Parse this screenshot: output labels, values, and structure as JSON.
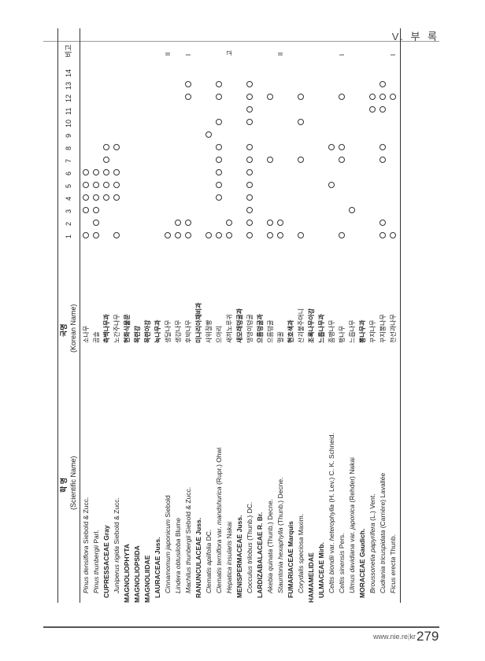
{
  "section_label": "V. 부 록",
  "footer": {
    "url": "www.nie.re.kr",
    "separator": "|",
    "page": "279"
  },
  "header": {
    "sci_title": "학 명",
    "sci_sub": "(Scientific Name)",
    "kor_title": "국명",
    "kor_sub": "(Korean Name)",
    "cols": [
      "1",
      "2",
      "3",
      "4",
      "5",
      "6",
      "7",
      "8",
      "9",
      "10",
      "11",
      "12",
      "13",
      "14"
    ],
    "note_title": "비고"
  },
  "rows": [
    {
      "ind": 2,
      "parts": [
        {
          "t": "Pinus densiflora",
          "i": true
        },
        {
          "t": " Siebold & Zucc."
        }
      ],
      "kor": "소나무",
      "marks": [
        1,
        3,
        4,
        5,
        6
      ],
      "note": ""
    },
    {
      "ind": 2,
      "parts": [
        {
          "t": "Pinus thunbergii",
          "i": true
        },
        {
          "t": " Parl."
        }
      ],
      "kor": "곰솔",
      "marks": [
        1,
        2,
        3,
        4,
        5,
        6
      ],
      "note": ""
    },
    {
      "ind": 1,
      "cap": true,
      "parts": [
        {
          "t": "CUPRESSACEAE Gray"
        }
      ],
      "kor": "측백나무과",
      "kb": true,
      "marks": [
        4,
        5,
        6,
        7,
        8
      ],
      "note": ""
    },
    {
      "ind": 2,
      "parts": [
        {
          "t": "Juniperus rigida",
          "i": true
        },
        {
          "t": " Siebold & Zucc."
        }
      ],
      "kor": "노간주나무",
      "marks": [
        1,
        4,
        5,
        6,
        8
      ],
      "note": ""
    },
    {
      "ind": 0,
      "cap": true,
      "parts": [
        {
          "t": "MAGNOLIOPHYTA"
        }
      ],
      "kor": "현화식물문",
      "kb": true,
      "marks": [],
      "note": ""
    },
    {
      "ind": 0,
      "cap": true,
      "parts": [
        {
          "t": "MAGNOLIOPSIDA"
        }
      ],
      "kor": "목련강",
      "kb": true,
      "marks": [],
      "note": ""
    },
    {
      "ind": 0,
      "cap": true,
      "parts": [
        {
          "t": "MAGNOLIIDAE"
        }
      ],
      "kor": "목련아강",
      "kb": true,
      "marks": [],
      "note": ""
    },
    {
      "ind": 1,
      "cap": true,
      "parts": [
        {
          "t": "LAURACEAE Juss."
        }
      ],
      "kor": "녹나무과",
      "kb": true,
      "marks": [],
      "note": ""
    },
    {
      "ind": 2,
      "parts": [
        {
          "t": "Cinnamomum japonicum",
          "i": true
        },
        {
          "t": " Siebold"
        }
      ],
      "kor": "생달나무",
      "marks": [
        1
      ],
      "note": "II"
    },
    {
      "ind": 2,
      "parts": [
        {
          "t": "Lindera obtusiloba",
          "i": true
        },
        {
          "t": " Blume"
        }
      ],
      "kor": "생강나무",
      "marks": [
        1,
        2
      ],
      "note": ""
    },
    {
      "ind": 2,
      "parts": [
        {
          "t": "Machilus thunbergii",
          "i": true
        },
        {
          "t": " Siebold & Zucc."
        }
      ],
      "kor": "후박나무",
      "marks": [
        1,
        2,
        12,
        13
      ],
      "note": "I"
    },
    {
      "ind": 1,
      "cap": true,
      "parts": [
        {
          "t": "RANUNCULACEAE Juss."
        }
      ],
      "kor": "미나리아재비과",
      "kb": true,
      "marks": [],
      "note": ""
    },
    {
      "ind": 2,
      "parts": [
        {
          "t": "Clematis apiifolia",
          "i": true
        },
        {
          "t": " DC."
        }
      ],
      "kor": "사위질빵",
      "marks": [
        1,
        9
      ],
      "note": ""
    },
    {
      "ind": 2,
      "parts": [
        {
          "t": "Clematis terniflora",
          "i": true
        },
        {
          "t": " var. "
        },
        {
          "t": "mandshurica",
          "i": true
        },
        {
          "t": " (Rupr.) Ohwi"
        }
      ],
      "kor": "으아리",
      "marks": [
        1,
        4,
        5,
        6,
        7,
        8,
        10,
        12,
        13
      ],
      "note": ""
    },
    {
      "ind": 2,
      "parts": [
        {
          "t": "Hepatica insularis",
          "i": true
        },
        {
          "t": " Nakai"
        }
      ],
      "kor": "새끼노루귀",
      "marks": [
        1,
        2
      ],
      "note": "고"
    },
    {
      "ind": 1,
      "cap": true,
      "parts": [
        {
          "t": "MENISPERMACEAE Juss."
        }
      ],
      "kor": "새모래덩굴과",
      "kb": true,
      "marks": [],
      "note": ""
    },
    {
      "ind": 2,
      "parts": [
        {
          "t": "Cocculus trilobus",
          "i": true
        },
        {
          "t": " (Thunb.) DC."
        }
      ],
      "kor": "댕댕이덩굴",
      "marks": [
        1,
        2,
        3,
        4,
        5,
        6,
        7,
        8,
        10,
        11,
        12,
        13
      ],
      "note": ""
    },
    {
      "ind": 1,
      "cap": true,
      "parts": [
        {
          "t": "LARDIZABALACEAE R. Br."
        }
      ],
      "kor": "으름덩굴과",
      "kb": true,
      "marks": [],
      "note": ""
    },
    {
      "ind": 2,
      "parts": [
        {
          "t": "Akebia quinata",
          "i": true
        },
        {
          "t": " (Thunb.) Decne."
        }
      ],
      "kor": "으름덩굴",
      "marks": [
        1,
        2,
        7,
        12
      ],
      "note": ""
    },
    {
      "ind": 2,
      "parts": [
        {
          "t": "Stauntonia hexaphylla",
          "i": true
        },
        {
          "t": " (Thunb.) Decne."
        }
      ],
      "kor": "멀꿀",
      "marks": [
        1,
        2
      ],
      "note": "II"
    },
    {
      "ind": 1,
      "cap": true,
      "parts": [
        {
          "t": "FUMARIACEAE Marquis"
        }
      ],
      "kor": "현호색과",
      "kb": true,
      "marks": [],
      "note": ""
    },
    {
      "ind": 2,
      "parts": [
        {
          "t": "Corydalis speciosa",
          "i": true
        },
        {
          "t": " Maxim."
        }
      ],
      "kor": "산괴불주머니",
      "marks": [
        1,
        7,
        10,
        12
      ],
      "note": ""
    },
    {
      "ind": 0,
      "cap": true,
      "parts": [
        {
          "t": "HAMAMELIDAE"
        }
      ],
      "kor": "조록나무아강",
      "kb": true,
      "marks": [],
      "note": ""
    },
    {
      "ind": 1,
      "cap": true,
      "parts": [
        {
          "t": "ULMACEAE Mirb."
        }
      ],
      "kor": "느릅나무과",
      "kb": true,
      "marks": [],
      "note": ""
    },
    {
      "ind": 2,
      "parts": [
        {
          "t": "Celtis biondii",
          "i": true
        },
        {
          "t": " var. "
        },
        {
          "t": "heterophylla",
          "i": true
        },
        {
          "t": " (H. Lev.) C. K. Schneid."
        }
      ],
      "kor": "좀팽나무",
      "marks": [
        5,
        8
      ],
      "note": ""
    },
    {
      "ind": 2,
      "parts": [
        {
          "t": "Celtis sinensis",
          "i": true
        },
        {
          "t": " Pers."
        }
      ],
      "kor": "팽나무",
      "marks": [
        1,
        7,
        8,
        12
      ],
      "note": "I"
    },
    {
      "ind": 2,
      "parts": [
        {
          "t": "Ulmus davidiana",
          "i": true
        },
        {
          "t": " var. "
        },
        {
          "t": "japonica",
          "i": true
        },
        {
          "t": " (Rehder) Nakai"
        }
      ],
      "kor": "느릅나무",
      "marks": [
        3
      ],
      "note": ""
    },
    {
      "ind": 1,
      "cap": true,
      "parts": [
        {
          "t": "MORACEAE Gaudich."
        }
      ],
      "kor": "뽕나무과",
      "kb": true,
      "marks": [],
      "note": ""
    },
    {
      "ind": 2,
      "parts": [
        {
          "t": "Broussonetia papyrifera",
          "i": true
        },
        {
          "t": " (L.) Vent."
        }
      ],
      "kor": "꾸지나무",
      "marks": [
        11,
        12
      ],
      "note": ""
    },
    {
      "ind": 2,
      "parts": [
        {
          "t": "Cudrania tricuspidata",
          "i": true
        },
        {
          "t": " (Carrière) Lavallée"
        }
      ],
      "kor": "꾸지뽕나무",
      "marks": [
        1,
        2,
        7,
        8,
        11,
        12,
        13
      ],
      "note": ""
    },
    {
      "ind": 2,
      "parts": [
        {
          "t": "Ficus erecta",
          "i": true
        },
        {
          "t": " Thunb."
        }
      ],
      "kor": "천선과나무",
      "marks": [
        1,
        12
      ],
      "note": "I"
    }
  ]
}
